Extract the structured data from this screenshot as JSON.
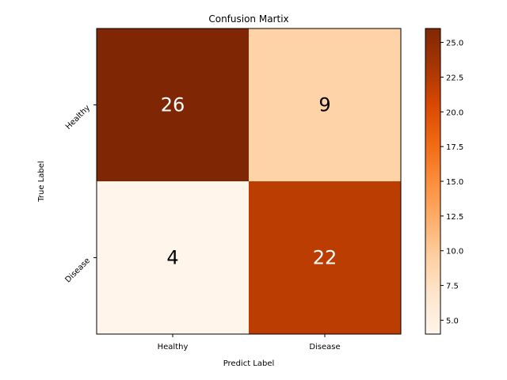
{
  "chart_data": {
    "type": "heatmap",
    "title": "Confusion Martix",
    "xlabel": "Predict Label",
    "ylabel": "True Label",
    "x_categories": [
      "Healthy",
      "Disease"
    ],
    "y_categories": [
      "Healthy",
      "Disease"
    ],
    "values": [
      [
        26,
        9
      ],
      [
        4,
        22
      ]
    ],
    "colorbar": {
      "range": [
        4,
        26
      ],
      "ticks": [
        "5.0",
        "7.5",
        "10.0",
        "12.5",
        "15.0",
        "17.5",
        "20.0",
        "22.5",
        "25.0"
      ],
      "colormap": "Oranges"
    },
    "cell_colors": [
      [
        "#7f2704",
        "#fdd3a7"
      ],
      [
        "#fff5eb",
        "#bb3d02"
      ]
    ],
    "cell_text_colors": [
      [
        "#ffffff",
        "#000000"
      ],
      [
        "#000000",
        "#ffffff"
      ]
    ]
  }
}
